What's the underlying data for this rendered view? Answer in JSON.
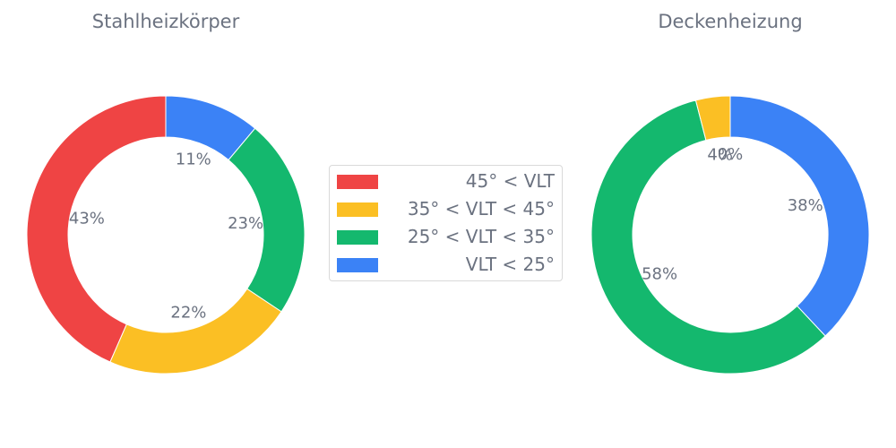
{
  "chart_data": [
    {
      "type": "pie",
      "title": "Stahlheizkörper",
      "donut": true,
      "categories": [
        "VLT < 25°",
        "25° < VLT < 35°",
        "35° < VLT < 45°",
        "45° < VLT"
      ],
      "values": [
        11,
        23,
        22,
        43
      ],
      "value_labels": [
        "11%",
        "23%",
        "22%",
        "43%"
      ],
      "colors": [
        "#3b82f6",
        "#14b86e",
        "#fbbf24",
        "#ef4444"
      ]
    },
    {
      "type": "pie",
      "title": "Deckenheizung",
      "donut": true,
      "categories": [
        "VLT < 25°",
        "25° < VLT < 35°",
        "35° < VLT < 45°",
        "45° < VLT"
      ],
      "values": [
        38,
        58,
        4,
        0
      ],
      "value_labels": [
        "38%",
        "58%",
        "4%",
        "0%"
      ],
      "colors": [
        "#3b82f6",
        "#14b86e",
        "#fbbf24",
        "#ef4444"
      ]
    }
  ],
  "legend": {
    "position": "center",
    "items": [
      {
        "label": "45° < VLT",
        "color": "#ef4444"
      },
      {
        "label": "35° < VLT < 45°",
        "color": "#fbbf24"
      },
      {
        "label": "25° < VLT < 35°",
        "color": "#14b86e"
      },
      {
        "label": "VLT < 25°",
        "color": "#3b82f6"
      }
    ]
  }
}
